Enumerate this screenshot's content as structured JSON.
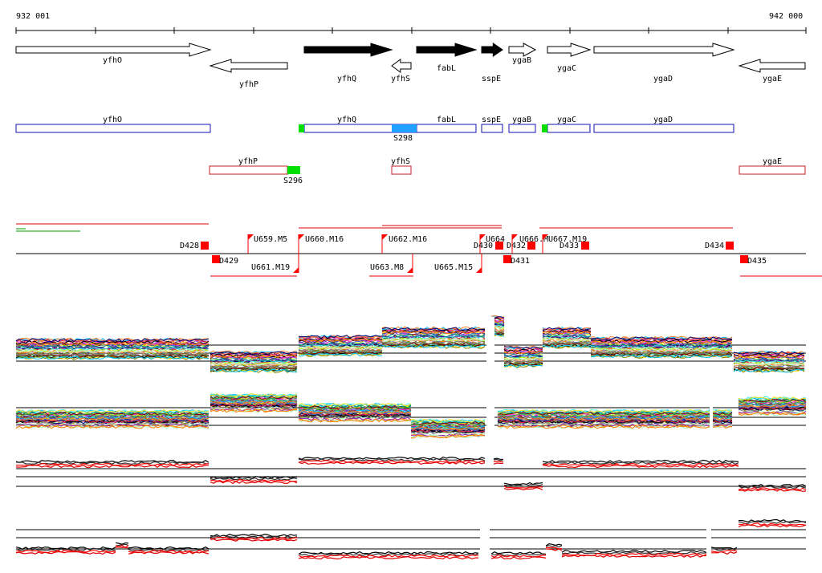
{
  "ruler": {
    "start_label": "932 001",
    "end_label": "942 000",
    "ticks": 10
  },
  "colors": {
    "outline": "#000000",
    "fill_dark": "#000000",
    "fill_light": "#ffffff",
    "blue": "#1010b0",
    "red": "#c02020",
    "green": "#00e000",
    "cyan": "#20a0ff",
    "marker": "#ff0000",
    "trace_red": "#ff0000"
  },
  "genes": [
    {
      "name": "yfhO",
      "dir": "right",
      "filled": false,
      "row": "top"
    },
    {
      "name": "yfhP",
      "dir": "left",
      "filled": false,
      "row": "bottom"
    },
    {
      "name": "yfhQ",
      "dir": "right",
      "filled": true,
      "row": "top"
    },
    {
      "name": "yfhS",
      "dir": "left",
      "filled": false,
      "row": "bottom"
    },
    {
      "name": "fabL",
      "dir": "right",
      "filled": true,
      "row": "top"
    },
    {
      "name": "sspE",
      "dir": "right",
      "filled": true,
      "row": "top"
    },
    {
      "name": "ygaB",
      "dir": "right",
      "filled": false,
      "row": "top"
    },
    {
      "name": "ygaC",
      "dir": "right",
      "filled": false,
      "row": "top"
    },
    {
      "name": "ygaD",
      "dir": "right",
      "filled": false,
      "row": "top"
    },
    {
      "name": "ygaE",
      "dir": "left",
      "filled": false,
      "row": "bottom"
    }
  ],
  "forward_track": [
    {
      "name": "yfhO"
    },
    {
      "name": "yfhQ"
    },
    {
      "name": "fabL"
    },
    {
      "name": "sspE"
    },
    {
      "name": "ygaB"
    },
    {
      "name": "ygaC"
    },
    {
      "name": "ygaD"
    }
  ],
  "reverse_track": [
    {
      "name": "yfhP"
    },
    {
      "name": "yfhS"
    },
    {
      "name": "ygaE"
    }
  ],
  "sites": [
    {
      "label": "S298",
      "strand": "forward"
    },
    {
      "label": "S296",
      "strand": "reverse"
    }
  ],
  "markers_above": [
    {
      "label": "D428"
    },
    {
      "label": "U659.M5"
    },
    {
      "label": "U660.M16"
    },
    {
      "label": "U662.M16"
    },
    {
      "label": "U664"
    },
    {
      "label": "D430"
    },
    {
      "label": "D432"
    },
    {
      "label": "U666.M"
    },
    {
      "label": "U667.M19"
    },
    {
      "label": "D433"
    },
    {
      "label": "D434"
    }
  ],
  "markers_below": [
    {
      "label": "D429"
    },
    {
      "label": "U661.M19"
    },
    {
      "label": "U663.M8"
    },
    {
      "label": "U665.M15"
    },
    {
      "label": "D431"
    },
    {
      "label": "D435"
    }
  ],
  "expression_panels": [
    {
      "name": "panel-1",
      "style": "multicolor"
    },
    {
      "name": "panel-2",
      "style": "multicolor"
    },
    {
      "name": "panel-3",
      "style": "red-black"
    },
    {
      "name": "panel-4",
      "style": "red-black"
    }
  ]
}
